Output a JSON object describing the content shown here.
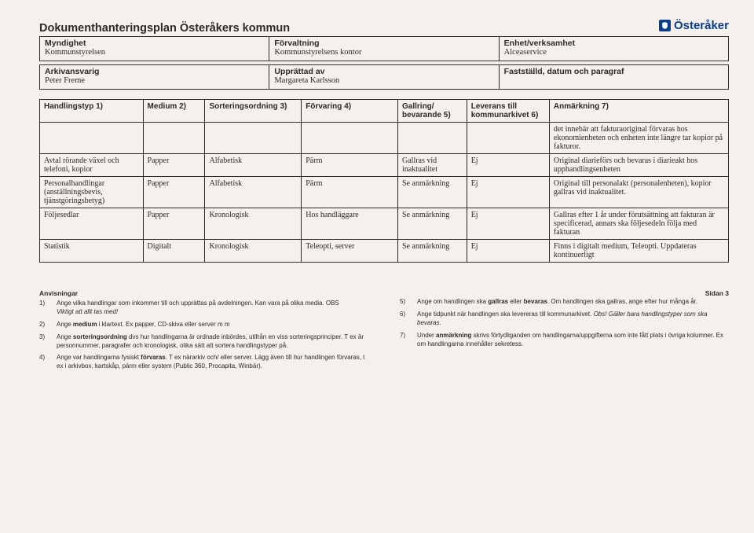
{
  "title": "Dokumenthanteringsplan Österåkers kommun",
  "logo_text": "Österåker",
  "header": {
    "row1": {
      "c1": {
        "label": "Myndighet",
        "value": "Kommunstyrelsen"
      },
      "c2": {
        "label": "Förvaltning",
        "value": "Kommunstyrelsens kontor"
      },
      "c3": {
        "label": "Enhet/verksamhet",
        "value": "Alceaservice"
      }
    },
    "row2": {
      "c1": {
        "label": "Arkivansvarig",
        "value": "Peter Freme"
      },
      "c2": {
        "label": "Upprättad av",
        "value": "Margareta Karlsson"
      },
      "c3": {
        "label": "Fastställd, datum och paragraf",
        "value": ""
      }
    }
  },
  "columns": [
    "Handlingstyp 1)",
    "Medium 2)",
    "Sorteringsordning 3)",
    "Förvaring 4)",
    "Gallring/ bevarande 5)",
    "Leverans till kommunarkivet 6)",
    "Anmärkning 7)"
  ],
  "col_widths_pct": [
    15,
    9,
    14,
    14,
    10,
    12,
    26
  ],
  "rows": [
    {
      "c0": "",
      "c1": "",
      "c2": "",
      "c3": "",
      "c4": "",
      "c5": "",
      "c6": "det innebär att fakturaoriginal förvaras hos ekonomienheten och enheten inte längre tar kopior på fakturor."
    },
    {
      "c0": "Avtal rörande växel och telefoni, kopior",
      "c1": "Papper",
      "c2": "Alfabetisk",
      "c3": "Pärm",
      "c4": "Gallras vid inaktualitet",
      "c5": "Ej",
      "c6": "Original diarieförs och bevaras i diarieakt hos upphandlingsenheten"
    },
    {
      "c0": "Personalhandlingar (anställningsbevis, tjänstgöringsbetyg)",
      "c1": "Papper",
      "c2": "Alfabetisk",
      "c3": "Pärm",
      "c4": "Se anmärkning",
      "c5": "Ej",
      "c6": "Original till personalakt (personalenheten), kopior gallras vid inaktualitet."
    },
    {
      "c0": "Följesedlar",
      "c1": "Papper",
      "c2": "Kronologisk",
      "c3": "Hos handläggare",
      "c4": "Se anmärkning",
      "c5": "Ej",
      "c6": "Gallras efter 1 år under förutsättning att fakturan är specificerad, annars ska följesedeln följa med fakturan"
    },
    {
      "c0": "Statistik",
      "c1": "Digitalt",
      "c2": "Kronologisk",
      "c3": "Teleopti, server",
      "c4": "Se anmärkning",
      "c5": "Ej",
      "c6": "Finns i digitalt medium, Teleopti. Uppdateras kontinuerligt"
    }
  ],
  "footnotes": {
    "title_left": "Anvisningar",
    "page_label": "Sidan 3",
    "left": [
      {
        "n": "1)",
        "t": "Ange vilka handlingar som inkommer till och upprättas på avdelningen. Kan vara på olika media. OBS",
        "it": "Viktigt att allt tas med!"
      },
      {
        "n": "2)",
        "t": "Ange <b>medium</b> i klartext. Ex papper, CD-skiva eller server m m"
      },
      {
        "n": "3)",
        "t": "Ange <b>sorteringsordning</b> dvs hur handlingarna är ordnade inbördes, utifrån en viss sorteringsprinciper. T ex är personnummer, paragrafer och kronologisk, olika sätt att sortera handlingstyper på."
      },
      {
        "n": "4)",
        "t": "Ange var handlingarna fysiskt <b>förvaras</b>. T ex närarkiv och/ eller server. Lägg även till <i>hur</i> handlingen förvaras, t ex i arkivbox, kartskåp, pärm eller system (Public 360, Procapita, Winbär)."
      }
    ],
    "right": [
      {
        "n": "5)",
        "t": "Ange om handlingen ska <b>gallras</b> eller <b>bevaras</b>. Om handlingen ska gallras, ange efter hur många år."
      },
      {
        "n": "6)",
        "t": "Ange tidpunkt när handlingen ska levereras till kommunarkivet. <i>Obs! Gäller bara handlingstyper som ska bevaras.</i>"
      },
      {
        "n": "7)",
        "t": "Under <b>anmärkning</b> skrivs förtydliganden om handlingarna/uppgifterna som inte fått plats i övriga kolumner. Ex om handlingarna innehåller sekretess."
      }
    ]
  }
}
